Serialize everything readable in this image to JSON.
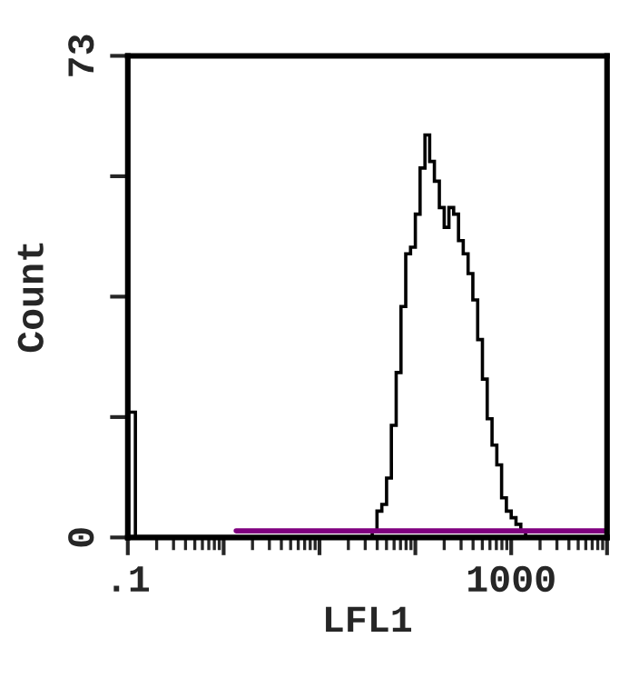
{
  "chart_data": {
    "type": "histogram",
    "xlabel": "LFL1",
    "ylabel": "Count",
    "log": "x",
    "grid": false,
    "color": "#000000",
    "bins": [
      0.1,
      0.12,
      35.5,
      39.8,
      44.7,
      50.1,
      56.2,
      63.1,
      70.8,
      79.4,
      89.1,
      100,
      112,
      126,
      141,
      158,
      178,
      200,
      224,
      251,
      282,
      316,
      355,
      398,
      447,
      501,
      562,
      631,
      708,
      794,
      891,
      1000,
      1122,
      1259,
      1413
    ],
    "values": [
      19,
      0,
      1,
      4,
      5,
      9,
      17,
      25,
      35,
      43,
      44,
      49,
      56,
      61,
      57,
      54,
      50,
      47,
      50,
      49,
      45,
      43,
      40,
      36,
      30,
      24,
      18,
      14,
      11,
      6,
      4,
      3,
      2,
      1
    ],
    "xlim": [
      0.1,
      10000
    ],
    "xticks": [
      {
        "value": 0.1,
        "label": ".1"
      },
      {
        "value": 1,
        "label": null
      },
      {
        "value": 10,
        "label": null
      },
      {
        "value": 100,
        "label": null
      },
      1000,
      {
        "value": 10000,
        "label": null
      }
    ],
    "ylim": [
      0,
      73
    ],
    "yticks": [
      0,
      {
        "value": 18.25,
        "label": null
      },
      {
        "value": 36.5,
        "label": null
      },
      {
        "value": 54.75,
        "label": null
      },
      73
    ],
    "series": [
      {
        "type": "line",
        "x": [
          1.35,
          10000
        ],
        "values": [
          1,
          1
        ],
        "color": "#800080"
      }
    ]
  }
}
